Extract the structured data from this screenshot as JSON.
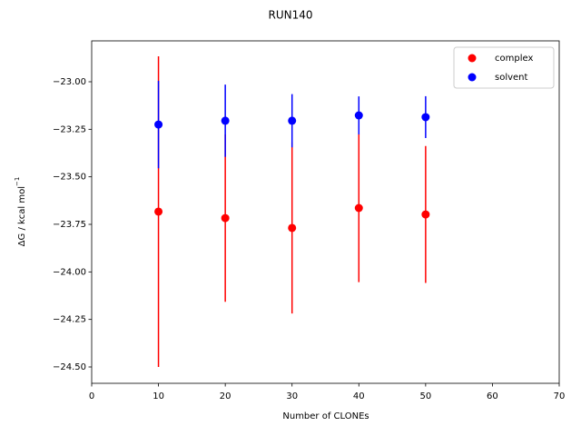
{
  "chart_data": {
    "type": "errorbar-scatter",
    "title": "RUN140",
    "xlabel": "Number of CLONEs",
    "ylabel": "ΔG / kcal mol",
    "ylabel_sup": "−1",
    "x": [
      10,
      20,
      30,
      40,
      50
    ],
    "series": [
      {
        "name": "complex",
        "color": "#ff0000",
        "values": [
          -23.683,
          -23.717,
          -23.769,
          -23.664,
          -23.698
        ],
        "errors": [
          0.817,
          0.44,
          0.45,
          0.39,
          0.36
        ]
      },
      {
        "name": "solvent",
        "color": "#0000ff",
        "values": [
          -23.225,
          -23.205,
          -23.205,
          -23.177,
          -23.186
        ],
        "errors": [
          0.23,
          0.19,
          0.14,
          0.1,
          0.11
        ]
      }
    ],
    "xlim": [
      0,
      70
    ],
    "xticks": [
      0,
      10,
      20,
      30,
      40,
      50,
      60,
      70
    ],
    "ylim": [
      -24.586,
      -22.785
    ],
    "yticks": [
      {
        "value": -24.5,
        "label": "−24.50"
      },
      {
        "value": -24.25,
        "label": "−24.25"
      },
      {
        "value": -24.0,
        "label": "−24.00"
      },
      {
        "value": -23.75,
        "label": "−23.75"
      },
      {
        "value": -23.5,
        "label": "−23.50"
      },
      {
        "value": -23.25,
        "label": "−23.25"
      },
      {
        "value": -23.0,
        "label": "−23.00"
      }
    ],
    "legend": "upper right",
    "grid": false
  }
}
